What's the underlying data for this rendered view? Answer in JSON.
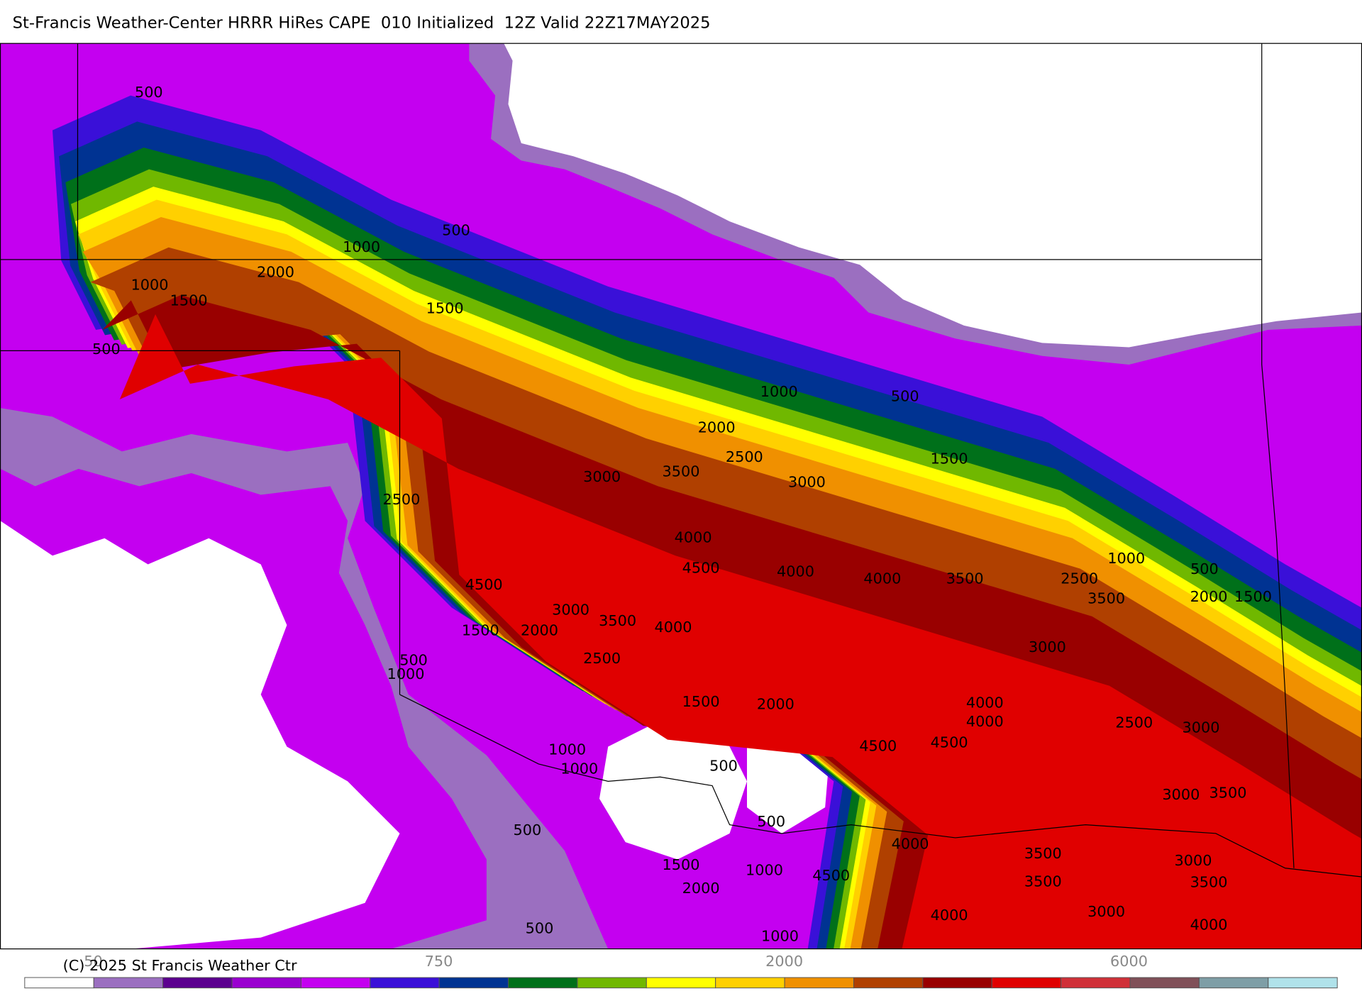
{
  "header": {
    "title": "St-Francis Weather-Center HRRR HiRes CAPE  010 Initialized  12Z Valid 22Z17MAY2025"
  },
  "map": {
    "contour_labels": [
      500,
      500,
      1000,
      2000,
      1000,
      1500,
      1500,
      500,
      1000,
      500,
      2000,
      2500,
      1500,
      3000,
      3500,
      3000,
      2500,
      4000,
      4500,
      4000,
      4000,
      3500,
      1000,
      500,
      2500,
      3500,
      2000,
      1500,
      4500,
      3000,
      3500,
      4000,
      1500,
      2000,
      2500,
      500,
      1000,
      3000,
      1500,
      2000,
      4000,
      4000,
      2500,
      3000,
      4500,
      4500,
      1000,
      1000,
      500,
      3000,
      3500,
      500,
      500,
      4000,
      3500,
      3000,
      1500,
      1000,
      4500,
      2000,
      3500,
      3500,
      4000,
      3000,
      4000,
      500,
      1000
    ]
  },
  "colorbar": {
    "colors": [
      "#ffffff",
      "#9b6fc0",
      "#5c008f",
      "#9a00d0",
      "#c400f0",
      "#3a10d8",
      "#003392",
      "#00701a",
      "#70b800",
      "#ffff00",
      "#ffd000",
      "#f09000",
      "#b04000",
      "#990000",
      "#e00000",
      "#d03038",
      "#805058",
      "#7e9ea6",
      "#b0e2ea"
    ],
    "labels": [
      "50",
      "750",
      "2000",
      "6000"
    ]
  },
  "footer": {
    "copyright": "(C) 2025 St Francis Weather Ctr"
  }
}
